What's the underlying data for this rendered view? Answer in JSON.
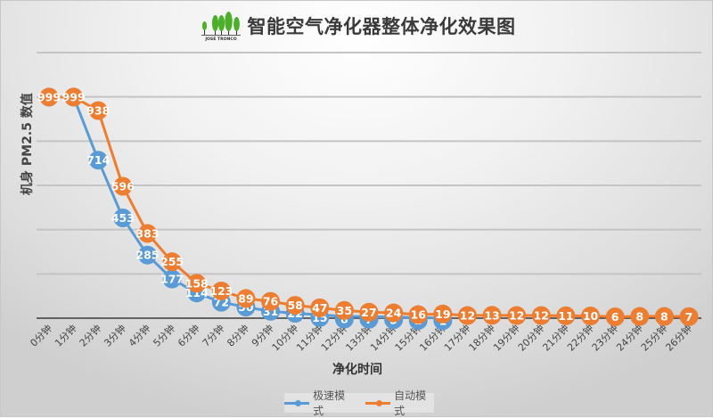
{
  "header": {
    "logo_text": "JOSÉ TRONCO",
    "title": "智能空气净化器整体净化效果图"
  },
  "colors": {
    "series_fast": "#5b9bd5",
    "series_auto": "#ed7d31",
    "gridline": "#c4c4c4",
    "axis": "#3a3a3a"
  },
  "legend": {
    "items": [
      {
        "label": "极速模式",
        "color": "#5b9bd5"
      },
      {
        "label": "自动模式",
        "color": "#ed7d31"
      }
    ]
  },
  "chart_data": {
    "type": "line",
    "title": "智能空气净化器整体净化效果图",
    "xlabel": "净化时间",
    "ylabel": "机身 PM2.5 数值",
    "ylim": [
      0,
      1200
    ],
    "y_gridlines": [
      0,
      200,
      400,
      600,
      800,
      1000,
      1200
    ],
    "y_tick_labels_shown": false,
    "grid": true,
    "legend_position": "bottom",
    "categories": [
      "0分钟",
      "1分钟",
      "2分钟",
      "3分钟",
      "4分钟",
      "5分钟",
      "6分钟",
      "7分钟",
      "8分钟",
      "9分钟",
      "10分钟",
      "11分钟",
      "12分钟",
      "13分钟",
      "14分钟",
      "15分钟",
      "16分钟",
      "17分钟",
      "18分钟",
      "19分钟",
      "20分钟",
      "21分钟",
      "22分钟",
      "23分钟",
      "24分钟",
      "25分钟",
      "26分钟"
    ],
    "series": [
      {
        "name": "极速模式",
        "color": "#5b9bd5",
        "values": [
          999,
          999,
          714,
          453,
          285,
          177,
          114,
          72,
          50,
          31,
          22,
          15,
          8,
          7,
          5,
          2,
          1,
          null,
          null,
          null,
          null,
          null,
          null,
          null,
          null,
          null,
          null
        ]
      },
      {
        "name": "自动模式",
        "color": "#ed7d31",
        "values": [
          999,
          999,
          938,
          596,
          383,
          255,
          158,
          123,
          89,
          76,
          58,
          47,
          35,
          27,
          24,
          16,
          19,
          12,
          13,
          12,
          12,
          11,
          10,
          6,
          8,
          8,
          7
        ]
      }
    ]
  }
}
